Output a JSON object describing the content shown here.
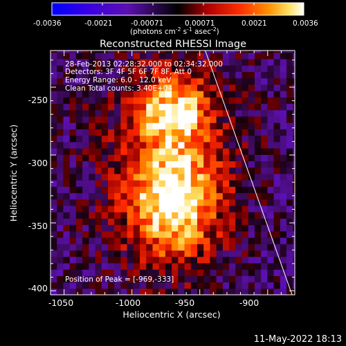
{
  "colorbar": {
    "ticks": [
      "-0.0036",
      "-0.0021",
      "-0.00071",
      "0.00071",
      "0.0021",
      "0.0036"
    ],
    "units_prefix": "(photons cm",
    "units_exp1": "-2",
    "units_mid": " s",
    "units_exp2": "-1",
    "units_mid2": " asec",
    "units_exp3": "-2",
    "units_suffix": ")"
  },
  "plot": {
    "title": "Reconstructed RHESSI Image",
    "xlabel": "Heliocentric X (arcsec)",
    "ylabel": "Heliocentric Y (arcsec)",
    "x_ticks": [
      "-1050",
      "-1000",
      "-950",
      "-900"
    ],
    "y_ticks": [
      "-250",
      "-300",
      "-350",
      "-400"
    ],
    "info": [
      "28-Feb-2013 02:28:32.000 to 02:34:32.000",
      "Detectors: 3F 4F 5F 6F 7F 8F, Att 0",
      "Energy Range: 6.0 - 12.0 keV",
      "Clean    Total counts: 3.40E+04"
    ],
    "peak_label": "Position of Peak = [-969,-333]"
  },
  "footer": {
    "date": "11-May-2022 18:13"
  },
  "chart_data": {
    "type": "heatmap",
    "title": "Reconstructed RHESSI Image",
    "xlabel": "Heliocentric X (arcsec)",
    "ylabel": "Heliocentric Y (arcsec)",
    "xlim": [
      -1060,
      -880
    ],
    "ylim": [
      -403,
      -223
    ],
    "colorscale_range": [
      -0.0036,
      0.0036
    ],
    "colorscale": "blue-purple-red-yellow-white",
    "sources": [
      {
        "x": -969,
        "y": -333,
        "intensity": 0.0036
      },
      {
        "x": -962,
        "y": -266,
        "intensity": 0.0024
      },
      {
        "x": -982,
        "y": -268,
        "intensity": 0.0016
      }
    ],
    "peak": [
      -969,
      -333
    ],
    "limb_line": {
      "points": [
        [
          -946,
          -223
        ],
        [
          -882,
          -403
        ]
      ]
    }
  }
}
